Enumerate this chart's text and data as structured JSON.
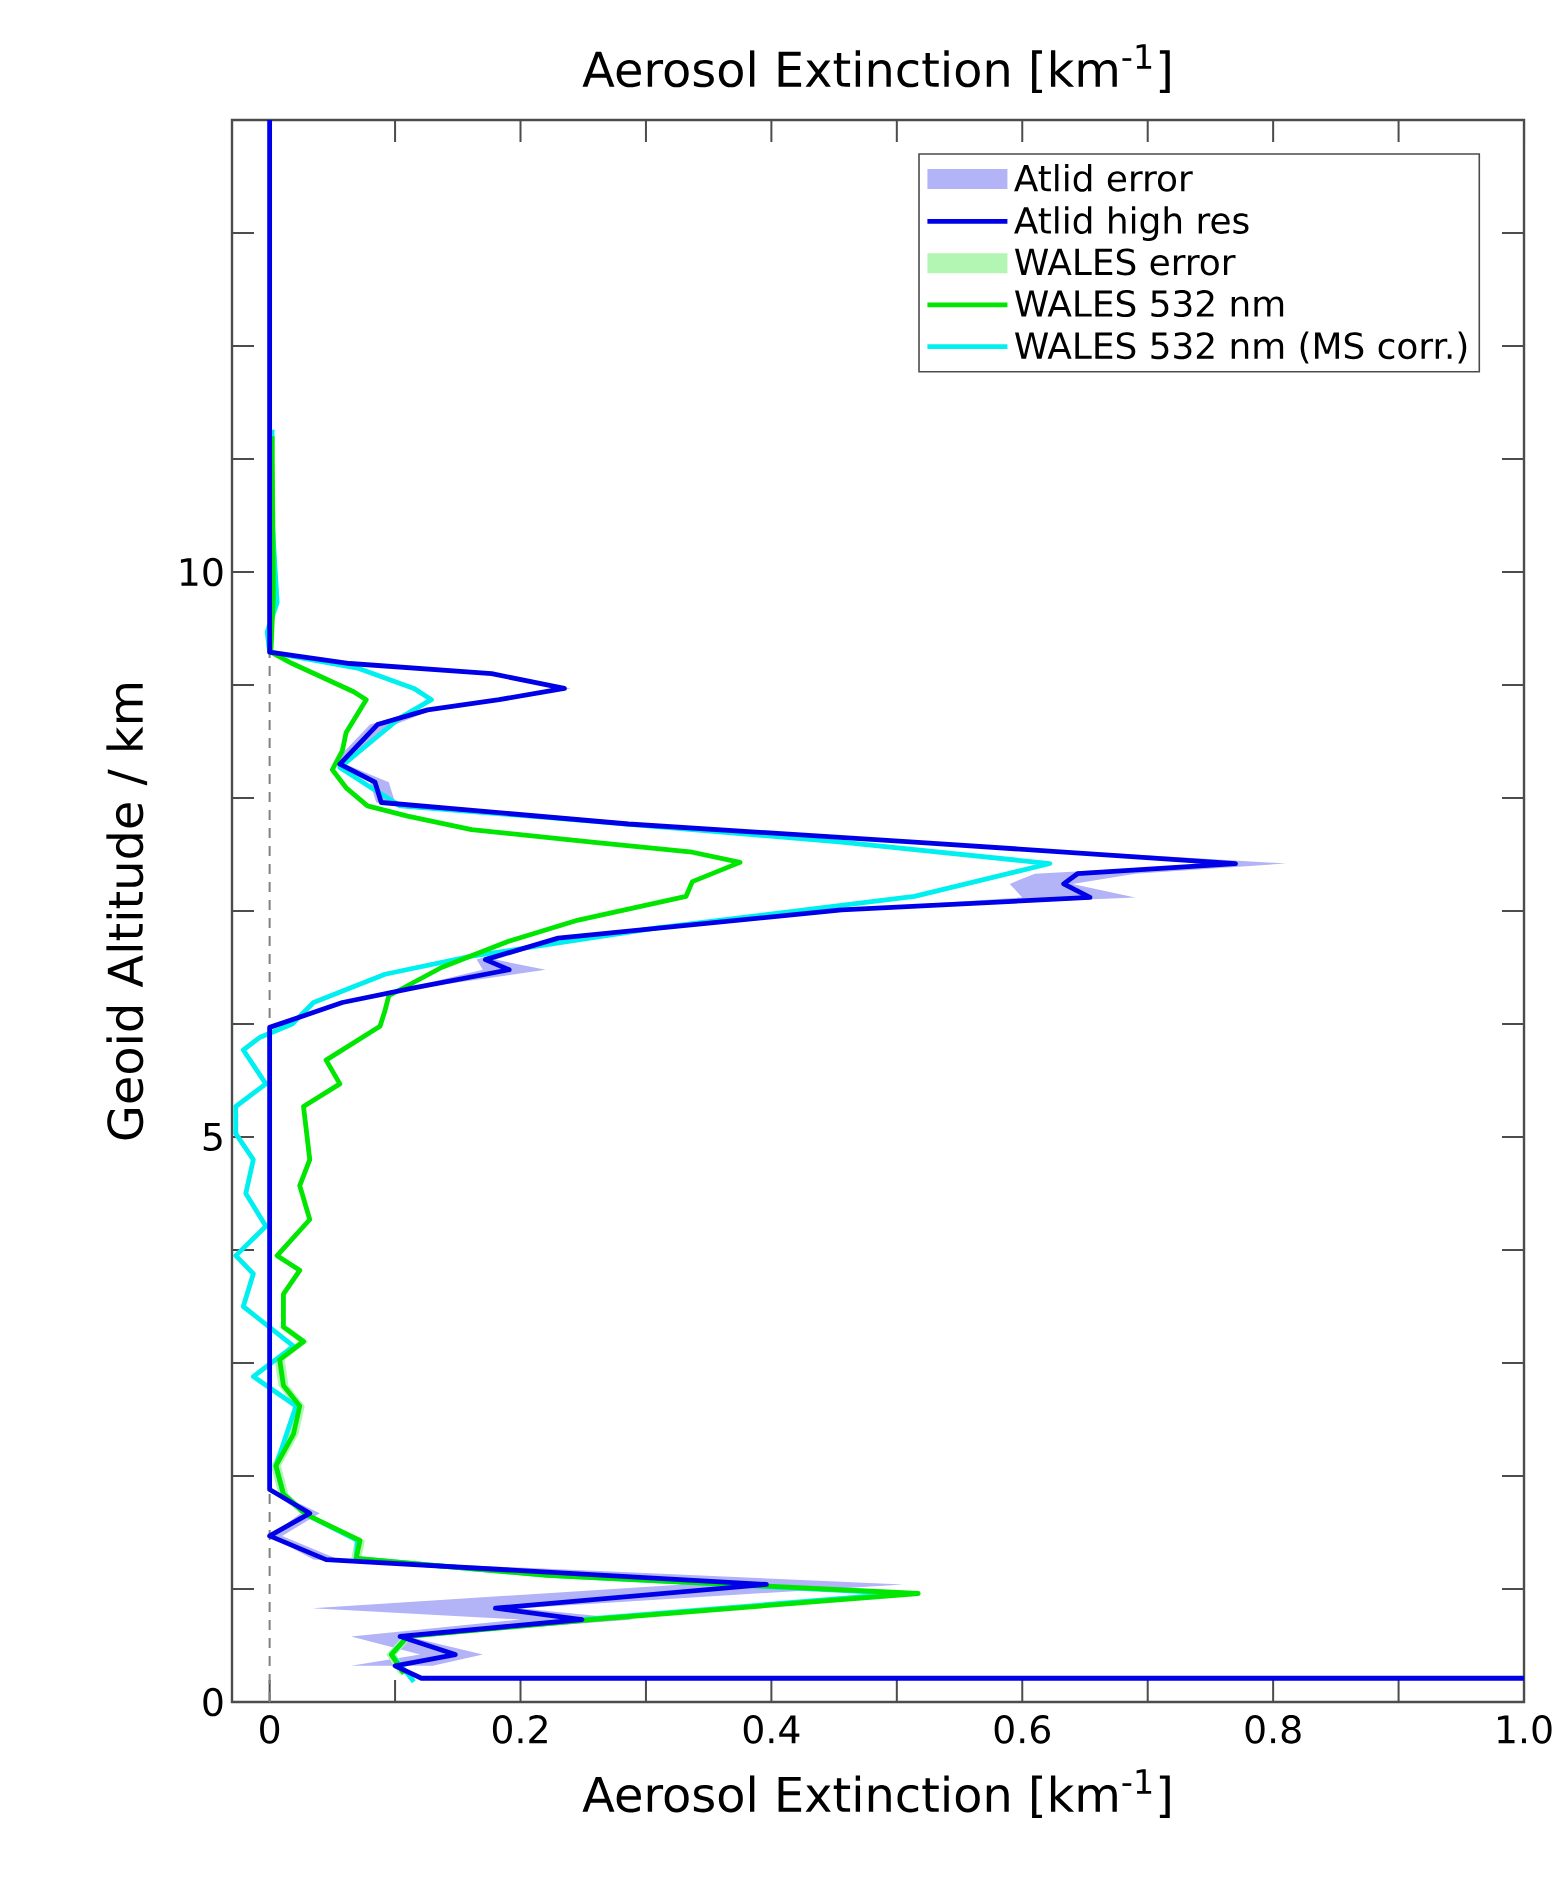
{
  "chart_data": {
    "type": "line",
    "title": "Aerosol Extinction [km$^{-1}$]",
    "xlabel": "Aerosol Extinction [km$^{-1}$]",
    "ylabel": "Geoid Altitude / km",
    "xlim": [
      -0.03,
      1.0
    ],
    "ylim": [
      0,
      14
    ],
    "xticks": [
      0,
      {
        "value": 0.1,
        "label": null
      },
      0.2,
      {
        "value": 0.3,
        "label": null
      },
      0.4,
      {
        "value": 0.5,
        "label": null
      },
      0.6,
      {
        "value": 0.7,
        "label": null
      },
      0.8,
      {
        "value": 0.9,
        "label": null
      },
      {
        "value": 1.0,
        "label": "1.0"
      }
    ],
    "yticks": [
      0,
      {
        "value": 1,
        "label": null
      },
      {
        "value": 2,
        "label": null
      },
      {
        "value": 3,
        "label": null
      },
      {
        "value": 4,
        "label": null
      },
      5,
      {
        "value": 6,
        "label": null
      },
      {
        "value": 7,
        "label": null
      },
      {
        "value": 8,
        "label": null
      },
      {
        "value": 9,
        "label": null
      },
      10,
      {
        "value": 11,
        "label": null
      },
      {
        "value": 12,
        "label": null
      },
      {
        "value": 13,
        "label": null
      }
    ],
    "legend": "top right",
    "ref_lines": [
      {
        "axis": "x",
        "value": 0,
        "color": "#808080",
        "line_style": "dashed"
      }
    ],
    "series": [
      {
        "name": "Atlid error",
        "type": "area",
        "color": "#b3b3f7",
        "x": [
          0.065,
          0.12,
          0.065,
          0.2,
          0.034,
          0.33,
          0.035,
          0,
          0.025,
          0,
          0,
          0.055,
          0.11,
          0.17,
          0.165,
          0.225,
          0.45,
          0.6,
          0.59,
          0.61,
          0.76,
          0.51,
          0.28,
          0.085,
          0.08,
          0.05,
          0.08,
          0.12,
          0.18,
          0.23,
          0.17,
          0.06,
          0,
          0,
          0.065,
          0.18,
          0.24,
          0.19,
          0.13,
          0.1,
          0.06,
          0.095,
          0.1,
          0.29,
          0.52,
          0.81,
          0.69,
          0.64,
          0.69,
          0.46,
          0.235,
          0.18,
          0.22,
          0.12,
          0.06,
          0,
          0,
          0.04,
          0.01,
          0.055,
          0.505,
          0.2,
          0.29,
          0.11,
          0.17,
          0.13
        ],
        "values": [
          0.32,
          0.42,
          0.58,
          0.73,
          0.83,
          1.04,
          1.26,
          1.47,
          1.67,
          1.88,
          5.97,
          6.19,
          6.32,
          6.48,
          6.57,
          6.76,
          7.01,
          7.12,
          7.24,
          7.33,
          7.42,
          7.61,
          7.77,
          7.96,
          8.14,
          8.3,
          8.65,
          8.78,
          8.87,
          8.97,
          9.1,
          9.19,
          9.29,
          9.29,
          9.19,
          9.1,
          8.97,
          8.87,
          8.78,
          8.65,
          8.3,
          8.14,
          7.96,
          7.77,
          7.61,
          7.42,
          7.33,
          7.24,
          7.12,
          7.01,
          6.76,
          6.57,
          6.48,
          6.32,
          6.19,
          5.97,
          1.88,
          1.67,
          1.47,
          1.26,
          1.04,
          0.83,
          0.73,
          0.58,
          0.42,
          0.32
        ]
      },
      {
        "name": "Atlid high res",
        "color": "#0000e8",
        "x": [
          1.0,
          0.121,
          0.1,
          0.148,
          0.104,
          0.249,
          0.18,
          0.396,
          0.045,
          0.0,
          0.032,
          0,
          0,
          0.058,
          0.115,
          0.191,
          0.172,
          0.23,
          0.456,
          0.654,
          0.633,
          0.644,
          0.77,
          0.514,
          0.286,
          0.089,
          0.084,
          0.056,
          0.086,
          0.126,
          0.183,
          0.235,
          0.177,
          0.064,
          0,
          0
        ],
        "values": [
          0.21,
          0.21,
          0.32,
          0.42,
          0.58,
          0.73,
          0.83,
          1.04,
          1.26,
          1.47,
          1.67,
          1.88,
          5.97,
          6.19,
          6.32,
          6.48,
          6.57,
          6.76,
          7.01,
          7.12,
          7.24,
          7.33,
          7.42,
          7.61,
          7.77,
          7.96,
          8.14,
          8.3,
          8.65,
          8.78,
          8.87,
          8.97,
          9.1,
          9.19,
          9.29,
          14
        ]
      },
      {
        "name": "WALES error",
        "type": "area",
        "color": "#b3f5b3",
        "x": [
          0.007,
          0.023,
          0.004,
          0.007,
          0.02,
          0.015,
          0.001,
          0.007,
          0.025,
          0.068,
          0.065,
          0.218,
          0.513,
          0.253,
          0.106,
          0.093,
          0.103,
          0.111,
          0.101,
          0.114,
          0.261,
          0.521,
          0.226,
          0.073,
          0.076,
          0.033,
          0.015,
          0.009,
          0.023,
          0.028,
          0.015,
          0.012,
          0.031,
          0.015
        ],
        "values": [
          3.32,
          3.19,
          3.03,
          2.8,
          2.62,
          2.37,
          2.09,
          1.84,
          1.66,
          1.43,
          1.27,
          1.12,
          0.96,
          0.73,
          0.58,
          0.42,
          0.25,
          0.25,
          0.42,
          0.58,
          0.73,
          0.96,
          1.12,
          1.27,
          1.43,
          1.66,
          1.84,
          2.09,
          2.37,
          2.62,
          2.8,
          3.03,
          3.19,
          3.32
        ]
      },
      {
        "name": "WALES 532 nm",
        "color": "#00e600",
        "x": [
          0.107,
          0.097,
          0.11,
          0.257,
          0.517,
          0.222,
          0.069,
          0.072,
          0.029,
          0.011,
          0.005,
          0.019,
          0.024,
          0.011,
          0.008,
          0.027,
          0.011,
          0.011,
          0.024,
          0.006,
          0.032,
          0.024,
          0.032,
          0.027,
          0.056,
          0.045,
          0.088,
          0.092,
          0.095,
          0.137,
          0.19,
          0.246,
          0.332,
          0.337,
          0.375,
          0.337,
          0.257,
          0.161,
          0.11,
          0.078,
          0.061,
          0.05,
          0.058,
          0.061,
          0.077,
          0.067,
          0.018,
          0.001,
          0.003,
          0.002
        ],
        "values": [
          0.25,
          0.42,
          0.58,
          0.73,
          0.96,
          1.12,
          1.27,
          1.43,
          1.66,
          1.84,
          2.09,
          2.37,
          2.62,
          2.8,
          3.03,
          3.19,
          3.32,
          3.61,
          3.82,
          3.95,
          4.27,
          4.57,
          4.8,
          5.27,
          5.47,
          5.68,
          5.98,
          6.12,
          6.25,
          6.5,
          6.73,
          6.92,
          7.13,
          7.26,
          7.43,
          7.52,
          7.61,
          7.72,
          7.84,
          7.93,
          8.09,
          8.25,
          8.42,
          8.58,
          8.87,
          8.94,
          9.19,
          9.29,
          9.8,
          11.2
        ]
      },
      {
        "name": "WALES 532 nm (MS corr.)",
        "color": "#00f0f0",
        "x": [
          0.115,
          0.11,
          0.097,
          0.11,
          0.25,
          0.505,
          0.222,
          0.069,
          0.07,
          0.029,
          0.011,
          0.005,
          0.021,
          -0.013,
          0.019,
          -0.021,
          -0.013,
          -0.027,
          -0.003,
          -0.019,
          -0.013,
          -0.027,
          -0.027,
          -0.003,
          -0.021,
          -0.008,
          0.018,
          0.035,
          0.092,
          0.161,
          0.309,
          0.514,
          0.622,
          0.456,
          0.23,
          0.104,
          0.081,
          0.056,
          0.104,
          0.129,
          0.115,
          0.07,
          0,
          -0.002,
          0.006,
          0.001,
          0.002
        ],
        "values": [
          0.18,
          0.25,
          0.42,
          0.58,
          0.73,
          0.96,
          1.12,
          1.27,
          1.43,
          1.66,
          1.84,
          2.09,
          2.62,
          2.88,
          3.15,
          3.5,
          3.79,
          3.95,
          4.21,
          4.5,
          4.8,
          5.03,
          5.27,
          5.47,
          5.77,
          5.88,
          6.0,
          6.19,
          6.44,
          6.6,
          6.85,
          7.13,
          7.42,
          7.61,
          7.82,
          7.93,
          8.09,
          8.27,
          8.71,
          8.87,
          8.97,
          9.15,
          9.29,
          9.47,
          9.73,
          10.64,
          11.26
        ]
      }
    ]
  }
}
